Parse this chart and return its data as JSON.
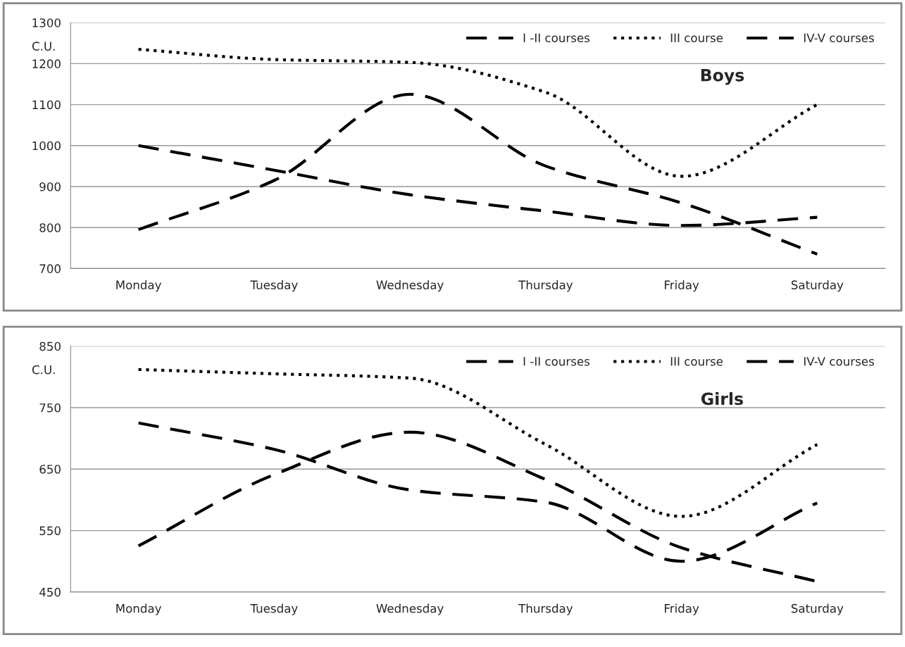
{
  "chart_data": [
    {
      "type": "line",
      "title": "Boys",
      "ylabel": "C.U.",
      "categories": [
        "Monday",
        "Tuesday",
        "Wednesday",
        "Thursday",
        "Friday",
        "Saturday"
      ],
      "ylim": [
        700,
        1300
      ],
      "yticks": [
        700,
        800,
        900,
        1000,
        1100,
        1200,
        1300
      ],
      "grid": "y",
      "legend": "top right",
      "marker": "none",
      "series": [
        {
          "name": "I -II courses",
          "color": "#000000",
          "line_style": "dashed",
          "values": [
            1000,
            940,
            880,
            840,
            805,
            825
          ]
        },
        {
          "name": "III course",
          "color": "#000000",
          "line_style": "dotted",
          "values": [
            1235,
            1210,
            1203,
            1130,
            925,
            1100
          ]
        },
        {
          "name": "IV-V courses",
          "color": "#000000",
          "line_style": "dashed",
          "values": [
            795,
            915,
            1125,
            950,
            860,
            735
          ]
        }
      ]
    },
    {
      "type": "line",
      "title": "Girls",
      "ylabel": "C.U.",
      "categories": [
        "Monday",
        "Tuesday",
        "Wednesday",
        "Thursday",
        "Friday",
        "Saturday"
      ],
      "ylim": [
        450,
        850
      ],
      "yticks": [
        450,
        550,
        650,
        750,
        850
      ],
      "grid": "y",
      "legend": "top right",
      "marker": "none",
      "series": [
        {
          "name": "I -II courses",
          "color": "#000000",
          "line_style": "dashed",
          "values": [
            725,
            682,
            616,
            596,
            500,
            595
          ]
        },
        {
          "name": "III course",
          "color": "#000000",
          "line_style": "dotted",
          "values": [
            812,
            805,
            798,
            690,
            573,
            690
          ]
        },
        {
          "name": "IV-V courses",
          "color": "#000000",
          "line_style": "dashed",
          "values": [
            525,
            641,
            710,
            633,
            522,
            467
          ]
        }
      ]
    }
  ]
}
